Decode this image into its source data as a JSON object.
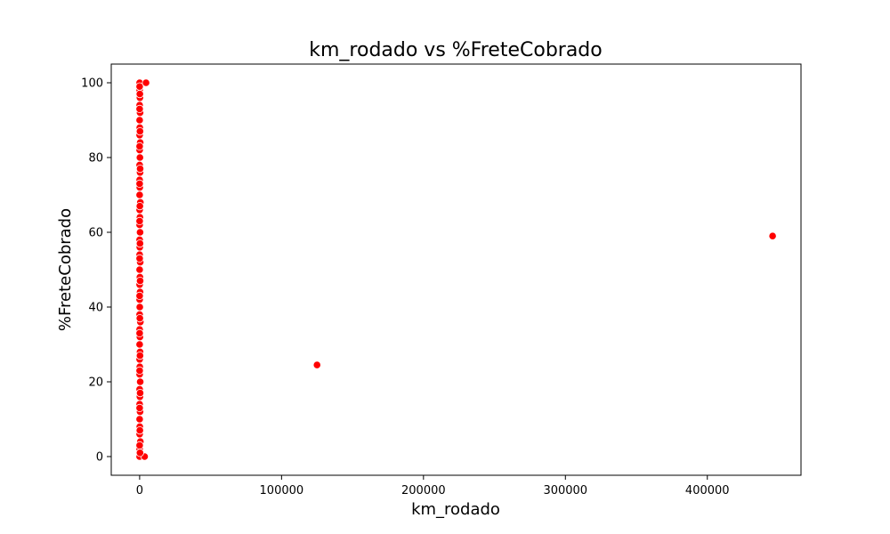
{
  "chart_data": {
    "type": "scatter",
    "title": "km_rodado vs %FreteCobrado",
    "xlabel": "km_rodado",
    "ylabel": "%FreteCobrado",
    "xlim": [
      -20000,
      466000
    ],
    "ylim": [
      -5,
      105
    ],
    "x_ticks": [
      0,
      100000,
      200000,
      300000,
      400000
    ],
    "x_tick_labels": [
      "0",
      "100000",
      "200000",
      "300000",
      "400000"
    ],
    "y_ticks": [
      0,
      20,
      40,
      60,
      80,
      100
    ],
    "y_tick_labels": [
      "0",
      "20",
      "40",
      "60",
      "80",
      "100"
    ],
    "grid": false,
    "marker_color": "#ff0000",
    "marker_edge_color": "#ffffff",
    "points": [
      {
        "x": 0,
        "y": 100
      },
      {
        "x": 4500,
        "y": 100
      },
      {
        "x": 0,
        "y": 98
      },
      {
        "x": 200,
        "y": 96
      },
      {
        "x": 0,
        "y": 94
      },
      {
        "x": 300,
        "y": 92
      },
      {
        "x": 0,
        "y": 90
      },
      {
        "x": 100,
        "y": 88
      },
      {
        "x": 0,
        "y": 86
      },
      {
        "x": 400,
        "y": 84
      },
      {
        "x": 0,
        "y": 82
      },
      {
        "x": 200,
        "y": 80
      },
      {
        "x": 0,
        "y": 78
      },
      {
        "x": 300,
        "y": 76
      },
      {
        "x": 0,
        "y": 74
      },
      {
        "x": 100,
        "y": 72
      },
      {
        "x": 0,
        "y": 70
      },
      {
        "x": 500,
        "y": 68
      },
      {
        "x": 0,
        "y": 66
      },
      {
        "x": 200,
        "y": 64
      },
      {
        "x": 0,
        "y": 62
      },
      {
        "x": 300,
        "y": 60
      },
      {
        "x": 0,
        "y": 58
      },
      {
        "x": 100,
        "y": 56
      },
      {
        "x": 0,
        "y": 54
      },
      {
        "x": 400,
        "y": 52
      },
      {
        "x": 0,
        "y": 50
      },
      {
        "x": 200,
        "y": 48
      },
      {
        "x": 0,
        "y": 46
      },
      {
        "x": 300,
        "y": 44
      },
      {
        "x": 0,
        "y": 42
      },
      {
        "x": 100,
        "y": 40
      },
      {
        "x": 0,
        "y": 38
      },
      {
        "x": 500,
        "y": 36
      },
      {
        "x": 0,
        "y": 34
      },
      {
        "x": 200,
        "y": 32
      },
      {
        "x": 0,
        "y": 30
      },
      {
        "x": 300,
        "y": 28
      },
      {
        "x": 0,
        "y": 26
      },
      {
        "x": 100,
        "y": 24
      },
      {
        "x": 0,
        "y": 22
      },
      {
        "x": 400,
        "y": 20
      },
      {
        "x": 0,
        "y": 18
      },
      {
        "x": 200,
        "y": 16
      },
      {
        "x": 0,
        "y": 14
      },
      {
        "x": 300,
        "y": 12
      },
      {
        "x": 0,
        "y": 10
      },
      {
        "x": 100,
        "y": 8
      },
      {
        "x": 0,
        "y": 6
      },
      {
        "x": 500,
        "y": 4
      },
      {
        "x": 0,
        "y": 2
      },
      {
        "x": 0,
        "y": 0
      },
      {
        "x": 3500,
        "y": 0
      },
      {
        "x": 0,
        "y": 99
      },
      {
        "x": 150,
        "y": 97
      },
      {
        "x": 0,
        "y": 93
      },
      {
        "x": 250,
        "y": 87
      },
      {
        "x": 0,
        "y": 83
      },
      {
        "x": 350,
        "y": 77
      },
      {
        "x": 0,
        "y": 73
      },
      {
        "x": 150,
        "y": 67
      },
      {
        "x": 0,
        "y": 63
      },
      {
        "x": 250,
        "y": 57
      },
      {
        "x": 0,
        "y": 53
      },
      {
        "x": 350,
        "y": 47
      },
      {
        "x": 0,
        "y": 43
      },
      {
        "x": 150,
        "y": 37
      },
      {
        "x": 0,
        "y": 33
      },
      {
        "x": 250,
        "y": 27
      },
      {
        "x": 0,
        "y": 23
      },
      {
        "x": 350,
        "y": 17
      },
      {
        "x": 0,
        "y": 13
      },
      {
        "x": 150,
        "y": 7
      },
      {
        "x": 0,
        "y": 3
      },
      {
        "x": 250,
        "y": 1
      },
      {
        "x": 125000,
        "y": 24.5
      },
      {
        "x": 446000,
        "y": 59
      }
    ]
  }
}
